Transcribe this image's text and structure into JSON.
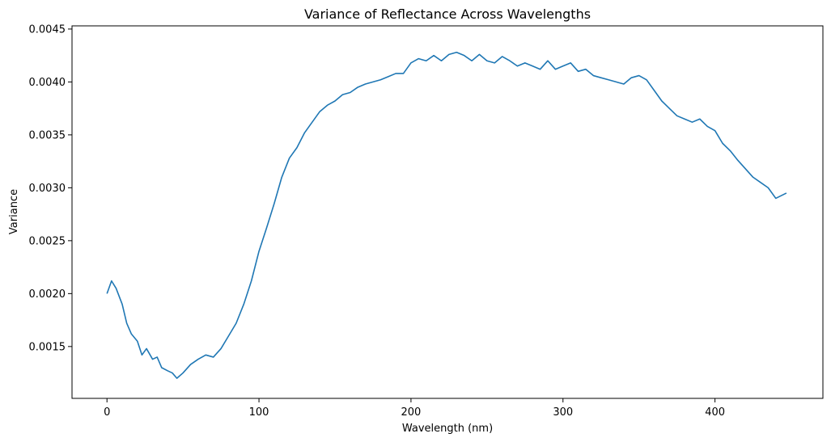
{
  "chart_data": {
    "type": "line",
    "title": "Variance of Reflectance Across Wavelengths",
    "xlabel": "Wavelength (nm)",
    "ylabel": "Variance",
    "xlim": [
      -23,
      471
    ],
    "ylim": [
      0.00101,
      0.00453
    ],
    "xticks": [
      0,
      100,
      200,
      300,
      400
    ],
    "yticks": [
      0.0015,
      0.002,
      0.0025,
      0.003,
      0.0035,
      0.004,
      0.0045
    ],
    "ytick_labels": [
      "0.0015",
      "0.0020",
      "0.0025",
      "0.0030",
      "0.0035",
      "0.0040",
      "0.0045"
    ],
    "grid": false,
    "legend": "none",
    "colors": {
      "line": "#1f77b4",
      "axes": "#000000",
      "background": "#ffffff"
    },
    "series": [
      {
        "x": [
          0,
          3,
          6,
          10,
          13,
          16,
          20,
          23,
          26,
          30,
          33,
          36,
          40,
          43,
          46,
          50,
          55,
          60,
          65,
          70,
          75,
          80,
          85,
          90,
          95,
          100,
          105,
          110,
          115,
          120,
          125,
          130,
          135,
          140,
          145,
          150,
          155,
          160,
          165,
          170,
          175,
          180,
          185,
          190,
          195,
          200,
          205,
          210,
          215,
          220,
          225,
          230,
          235,
          240,
          245,
          250,
          255,
          260,
          265,
          270,
          275,
          280,
          285,
          290,
          295,
          300,
          305,
          310,
          315,
          320,
          325,
          330,
          335,
          340,
          345,
          350,
          355,
          360,
          365,
          370,
          375,
          380,
          385,
          390,
          395,
          400,
          405,
          410,
          415,
          420,
          425,
          430,
          435,
          440,
          447
        ],
        "y": [
          0.002,
          0.00212,
          0.00205,
          0.0019,
          0.00172,
          0.00162,
          0.00155,
          0.00142,
          0.00148,
          0.00138,
          0.0014,
          0.0013,
          0.00127,
          0.00125,
          0.0012,
          0.00125,
          0.00133,
          0.00138,
          0.00142,
          0.0014,
          0.00148,
          0.0016,
          0.00172,
          0.0019,
          0.00212,
          0.0024,
          0.00262,
          0.00285,
          0.0031,
          0.00328,
          0.00338,
          0.00352,
          0.00362,
          0.00372,
          0.00378,
          0.00382,
          0.00388,
          0.0039,
          0.00395,
          0.00398,
          0.004,
          0.00402,
          0.00405,
          0.00408,
          0.00408,
          0.00418,
          0.00422,
          0.0042,
          0.00425,
          0.0042,
          0.00426,
          0.00428,
          0.00425,
          0.0042,
          0.00426,
          0.0042,
          0.00418,
          0.00424,
          0.0042,
          0.00415,
          0.00418,
          0.00415,
          0.00412,
          0.0042,
          0.00412,
          0.00415,
          0.00418,
          0.0041,
          0.00412,
          0.00406,
          0.00404,
          0.00402,
          0.004,
          0.00398,
          0.00404,
          0.00406,
          0.00402,
          0.00392,
          0.00382,
          0.00375,
          0.00368,
          0.00365,
          0.00362,
          0.00365,
          0.00358,
          0.00354,
          0.00342,
          0.00335,
          0.00326,
          0.00318,
          0.0031,
          0.00305,
          0.003,
          0.0029,
          0.00295
        ]
      }
    ]
  }
}
